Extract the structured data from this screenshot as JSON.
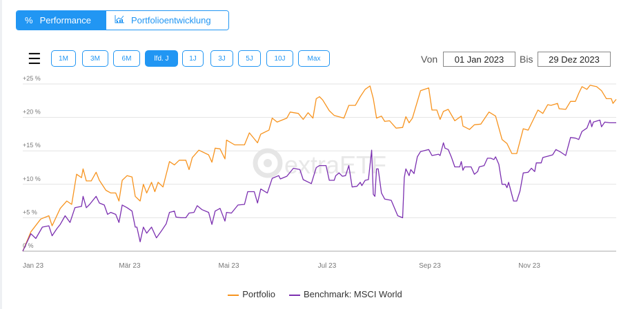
{
  "tabs": [
    {
      "label": "Performance",
      "icon": "percent-icon",
      "active": true
    },
    {
      "label": "Portfolioentwicklung",
      "icon": "chart-icon",
      "active": false
    }
  ],
  "ranges": [
    "1M",
    "3M",
    "6M",
    "lfd. J",
    "1J",
    "3J",
    "5J",
    "10J",
    "Max"
  ],
  "active_range": "lfd. J",
  "date_from_label": "Von",
  "date_from": "01 Jan 2023",
  "date_to_label": "Bis",
  "date_to": "29 Dez 2023",
  "watermark": "extraETF",
  "colors": {
    "accent": "#2196f3",
    "portfolio": "#f7931e",
    "benchmark": "#7b2fb0"
  },
  "chart_data": {
    "type": "line",
    "title": "",
    "xlabel": "",
    "ylabel": "",
    "x_unit": "day of year 2023",
    "xlim": [
      0,
      364
    ],
    "ylim": [
      0,
      25
    ],
    "yticks": [
      {
        "v": 0,
        "label": "0 %"
      },
      {
        "v": 5,
        "label": "+5 %"
      },
      {
        "v": 10,
        "label": "+10 %"
      },
      {
        "v": 15,
        "label": "+15 %"
      },
      {
        "v": 20,
        "label": "+20 %"
      },
      {
        "v": 25,
        "label": "+25 %"
      }
    ],
    "xticks": [
      {
        "v": 0,
        "label": "Jan 23"
      },
      {
        "v": 59,
        "label": "Mär 23"
      },
      {
        "v": 120,
        "label": "Mai 23"
      },
      {
        "v": 181,
        "label": "Jul 23"
      },
      {
        "v": 243,
        "label": "Sep 23"
      },
      {
        "v": 304,
        "label": "Nov 23"
      }
    ],
    "grid": true,
    "legend": "bottom",
    "series": [
      {
        "name": "Portfolio",
        "color": "#f7931e",
        "x": [
          0,
          5,
          11,
          16,
          18,
          23,
          27,
          30,
          33,
          36,
          37,
          39,
          42,
          45,
          47,
          51,
          54,
          57,
          59,
          61,
          64,
          67,
          69,
          72,
          74,
          76,
          79,
          81,
          83,
          86,
          90,
          93,
          96,
          100,
          102,
          104,
          108,
          114,
          116,
          118,
          121,
          124,
          125,
          130,
          136,
          139,
          144,
          146,
          151,
          153,
          156,
          162,
          164,
          169,
          172,
          175,
          178,
          180,
          182,
          184,
          188,
          191,
          197,
          200,
          204,
          207,
          210,
          213,
          215,
          217,
          220,
          222,
          225,
          229,
          233,
          235,
          237,
          239,
          244,
          249,
          251,
          254,
          256,
          258,
          261,
          265,
          269,
          270,
          274,
          277,
          281,
          286,
          290,
          294,
          297,
          300,
          303,
          307,
          310,
          314,
          316,
          319,
          322,
          324,
          328,
          329,
          333,
          336,
          339,
          341,
          343,
          346,
          348,
          352,
          355,
          358,
          361,
          362,
          364
        ],
        "y": [
          0,
          2.9,
          4.8,
          5.3,
          3.8,
          6.4,
          7.5,
          7.0,
          11.5,
          11.0,
          12.3,
          10.5,
          10.5,
          11.8,
          10.6,
          9.1,
          8.7,
          8.7,
          7.5,
          10.6,
          11.3,
          11.1,
          8.2,
          7.5,
          10.0,
          8.7,
          10.3,
          8.9,
          10.3,
          9.6,
          13.4,
          12.9,
          13.6,
          13.6,
          12.2,
          14.0,
          15.1,
          14.4,
          13.3,
          15.4,
          15.3,
          13.8,
          16.6,
          15.9,
          15.9,
          17.7,
          16.2,
          17.5,
          18.1,
          19.9,
          19.3,
          19.9,
          20.8,
          20.6,
          19.7,
          20.7,
          19.9,
          22.8,
          23.1,
          22.6,
          21.0,
          20.3,
          19.9,
          21.8,
          21.8,
          23.1,
          24.2,
          24.7,
          22.8,
          19.9,
          20.2,
          19.4,
          19.5,
          18.4,
          18.5,
          20.1,
          19.2,
          19.9,
          24.0,
          24.4,
          21.1,
          21.1,
          19.7,
          20.9,
          21.2,
          19.5,
          20.2,
          18.7,
          18.2,
          18.9,
          19.0,
          20.8,
          20.2,
          16.7,
          16.1,
          14.6,
          14.6,
          18.3,
          18.1,
          20.1,
          21.1,
          20.6,
          21.9,
          21.8,
          22.1,
          21.3,
          21.2,
          22.4,
          22.4,
          23.6,
          24.6,
          24.2,
          24.8,
          24.6,
          24.0,
          22.8,
          22.8,
          22.1,
          22.7
        ]
      },
      {
        "name": "Benchmark: MSCI World",
        "color": "#7b2fb0",
        "x": [
          0,
          5,
          8,
          12,
          16,
          18,
          21,
          23,
          26,
          29,
          32,
          36,
          37,
          39,
          41,
          45,
          47,
          50,
          52,
          54,
          57,
          59,
          61,
          64,
          67,
          69,
          70,
          72,
          74,
          76,
          79,
          82,
          85,
          88,
          90,
          93,
          94,
          97,
          100,
          102,
          105,
          107,
          110,
          114,
          116,
          118,
          121,
          124,
          125,
          128,
          132,
          136,
          138,
          142,
          144,
          146,
          150,
          153,
          157,
          158,
          162,
          166,
          170,
          172,
          177,
          180,
          182,
          186,
          188,
          191,
          192,
          194,
          196,
          198,
          200,
          202,
          205,
          207,
          208,
          210,
          212,
          214,
          215,
          216,
          217,
          218,
          220,
          222,
          226,
          230,
          233,
          234,
          235,
          237,
          238,
          240,
          242,
          244,
          249,
          251,
          255,
          256,
          258,
          259,
          261,
          263,
          265,
          268,
          269,
          270,
          271,
          275,
          277,
          279,
          280,
          283,
          285,
          287,
          289,
          290,
          292,
          294,
          296,
          297,
          298,
          301,
          303,
          305,
          307,
          310,
          312,
          314,
          315,
          318,
          319,
          322,
          325,
          327,
          330,
          333,
          336,
          339,
          341,
          343,
          346,
          348,
          349,
          350,
          354,
          355,
          357,
          360,
          364
        ],
        "y": [
          0,
          2.6,
          1.9,
          3.6,
          3.8,
          2.3,
          3.4,
          4.0,
          5.3,
          4.3,
          6.5,
          6.7,
          8.2,
          6.5,
          7.0,
          8.2,
          7.2,
          6.9,
          5.5,
          5.8,
          5.5,
          4.3,
          6.9,
          6.5,
          6.0,
          3.6,
          3.6,
          1.4,
          3.6,
          2.7,
          3.6,
          2.0,
          3.0,
          4.1,
          5.8,
          6.0,
          5.1,
          5.0,
          5.0,
          5.7,
          5.8,
          6.8,
          6.2,
          5.8,
          4.0,
          6.0,
          6.4,
          4.5,
          5.8,
          5.7,
          6.9,
          7.0,
          8.9,
          8.9,
          7.2,
          9.3,
          8.7,
          10.9,
          11.3,
          10.8,
          11.2,
          12.4,
          12.2,
          10.7,
          10.1,
          12.5,
          12.8,
          12.8,
          10.6,
          10.6,
          11.3,
          11.7,
          11.2,
          11.3,
          12.8,
          9.6,
          9.7,
          10.3,
          9.8,
          10.6,
          10.7,
          15.1,
          8.5,
          8.2,
          12.3,
          12.3,
          8.7,
          7.8,
          7.6,
          5.3,
          5.0,
          11.0,
          12.3,
          11.3,
          12.2,
          11.6,
          14.1,
          14.9,
          15.2,
          14.3,
          14.5,
          14.3,
          16.2,
          15.4,
          15.2,
          14.0,
          12.6,
          12.6,
          13.4,
          12.1,
          12.6,
          12.6,
          11.5,
          11.9,
          12.6,
          12.8,
          13.9,
          13.9,
          13.7,
          14.1,
          13.0,
          10.0,
          10.0,
          9.5,
          10.3,
          7.5,
          7.5,
          9.0,
          11.7,
          11.8,
          12.4,
          11.9,
          13.2,
          13.2,
          14.0,
          14.2,
          14.4,
          15.2,
          14.8,
          14.3,
          17.0,
          16.9,
          16.7,
          17.9,
          18.4,
          19.6,
          18.6,
          19.3,
          19.6,
          18.6,
          19.3,
          19.2,
          19.2
        ]
      }
    ]
  }
}
